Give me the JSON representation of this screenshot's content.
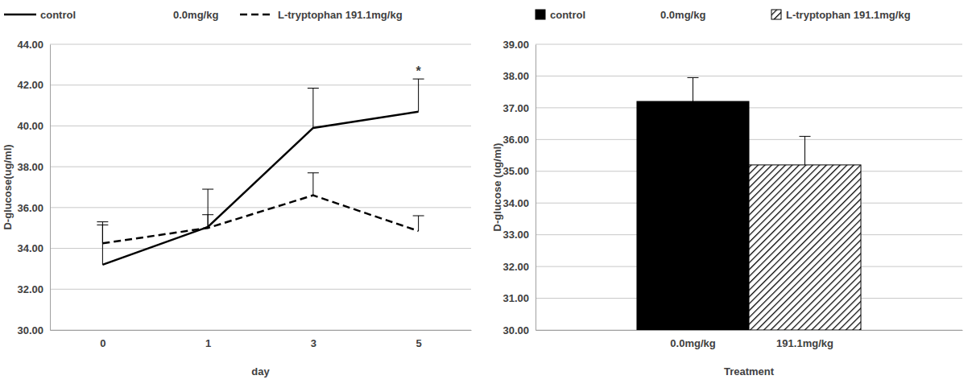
{
  "chart_data": [
    {
      "type": "line",
      "x_label": "day",
      "y_label": "D-glucose(ug/ml)",
      "categories": [
        "0",
        "1",
        "3",
        "5"
      ],
      "series": [
        {
          "name": "control",
          "color": "#000000",
          "line_style": "solid",
          "values": [
            33.2,
            35.05,
            39.9,
            40.7
          ],
          "errors": [
            2.1,
            1.85,
            1.95,
            1.6
          ]
        },
        {
          "name": "L-tryptophan 191.1mg/kg",
          "color": "#000000",
          "line_style": "dashed",
          "values": [
            34.25,
            35.0,
            36.6,
            34.85
          ],
          "errors": [
            0.9,
            0.65,
            1.1,
            0.75
          ]
        }
      ],
      "ylim": [
        30,
        44
      ],
      "yticks": [
        {
          "value": 30,
          "label": "30.00"
        },
        {
          "value": 32,
          "label": "32.00"
        },
        {
          "value": 34,
          "label": "34.00"
        },
        {
          "value": 36,
          "label": "36.00"
        },
        {
          "value": 38,
          "label": "38.00"
        },
        {
          "value": 40,
          "label": "40.00"
        },
        {
          "value": 42,
          "label": "42.00"
        },
        {
          "value": 44,
          "label": "44.00"
        }
      ],
      "grid": true,
      "legend": "top-left",
      "annotations": [
        {
          "text": "0.0mg/kg"
        },
        {
          "text": "*",
          "series": 0,
          "index": 3
        }
      ]
    },
    {
      "type": "bar",
      "x_label": "Treatment",
      "y_label": "D-glucose (ug/ml)",
      "categories": [
        "0.0mg/kg",
        "191.1mg/kg"
      ],
      "series": [
        {
          "name": "control",
          "color": "#000000",
          "line_style": "solid",
          "values": [
            37.2,
            null
          ],
          "errors": [
            0.75,
            null
          ]
        },
        {
          "name": "L-tryptophan 191.1mg/kg",
          "color": "#000000",
          "line_style": "hatched",
          "values": [
            null,
            35.2
          ],
          "errors": [
            null,
            0.9
          ]
        }
      ],
      "ylim": [
        30,
        39
      ],
      "yticks": [
        {
          "value": 30,
          "label": "30.00"
        },
        {
          "value": 31,
          "label": "31.00"
        },
        {
          "value": 32,
          "label": "32.00"
        },
        {
          "value": 33,
          "label": "33.00"
        },
        {
          "value": 34,
          "label": "34.00"
        },
        {
          "value": 35,
          "label": "35.00"
        },
        {
          "value": 36,
          "label": "36.00"
        },
        {
          "value": 37,
          "label": "37.00"
        },
        {
          "value": 38,
          "label": "38.00"
        },
        {
          "value": 39,
          "label": "39.00"
        }
      ],
      "grid": true,
      "legend": "top-left",
      "annotations": [
        {
          "text": "0.0mg/kg"
        }
      ]
    }
  ]
}
